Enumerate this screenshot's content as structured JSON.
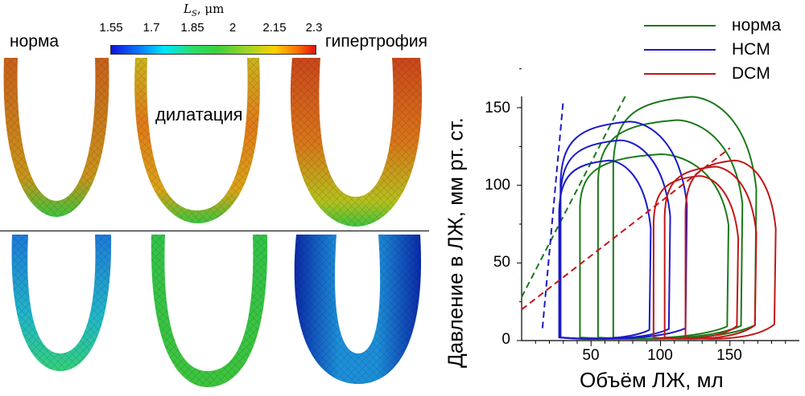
{
  "colorbar": {
    "title_symbol": "L",
    "title_sub": "S",
    "title_unit": ", μm",
    "ticks": [
      "1.55",
      "1.7",
      "1.85",
      "2",
      "2.15",
      "2.3"
    ],
    "min": 1.55,
    "max": 2.3
  },
  "labels": {
    "normal": "норма",
    "hypertrophy": "гипертрофия",
    "dilatation": "дилатация"
  },
  "legend": [
    {
      "label": "норма",
      "color": "#1a7a1a"
    },
    {
      "label": "HCM",
      "color": "#1a1ac8"
    },
    {
      "label": "DCM",
      "color": "#c01818"
    }
  ],
  "chart_data": {
    "type": "line",
    "title": "",
    "xlabel": "Объём ЛЖ, мл",
    "ylabel": "Давление в ЛЖ, мм рт. ст.",
    "xlim": [
      0,
      200
    ],
    "ylim": [
      -5,
      160
    ],
    "x_ticks": [
      "50",
      "100",
      "150"
    ],
    "y_ticks": [
      "0",
      "50",
      "100",
      "150"
    ],
    "series": [
      {
        "name": "норма",
        "color": "#1a7a1a",
        "loops": [
          {
            "ved": 148,
            "ves": 42,
            "pmax": 120
          },
          {
            "ved": 158,
            "ves": 55,
            "pmax": 142
          },
          {
            "ved": 168,
            "ves": 66,
            "pmax": 157
          }
        ],
        "espvr": {
          "x": [
            0,
            75
          ],
          "y": [
            28,
            158
          ]
        }
      },
      {
        "name": "HCM",
        "color": "#1a1ac8",
        "loops": [
          {
            "ved": 92,
            "ves": 27,
            "pmax": 116
          },
          {
            "ved": 106,
            "ves": 28,
            "pmax": 129
          },
          {
            "ved": 118,
            "ves": 28,
            "pmax": 141
          }
        ],
        "espvr": {
          "x": [
            15,
            30
          ],
          "y": [
            8,
            155
          ]
        }
      },
      {
        "name": "DCM",
        "color": "#c01818",
        "loops": [
          {
            "ved": 155,
            "ves": 95,
            "pmax": 106
          },
          {
            "ved": 168,
            "ves": 103,
            "pmax": 112
          },
          {
            "ved": 182,
            "ves": 118,
            "pmax": 116
          }
        ],
        "espvr": {
          "x": [
            0,
            150
          ],
          "y": [
            20,
            124
          ]
        }
      }
    ]
  }
}
